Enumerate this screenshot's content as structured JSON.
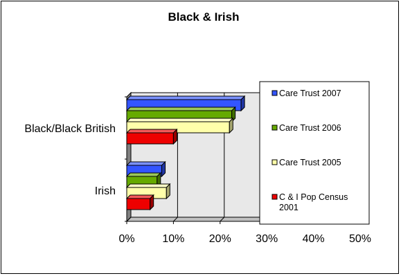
{
  "chart_data": {
    "type": "bar",
    "orientation": "horizontal",
    "title": "Black & Irish",
    "categories": [
      "Black/Black British",
      "Irish"
    ],
    "series": [
      {
        "name": "Care Trust 2007",
        "color": "#3355ff",
        "values": [
          0.245,
          0.075
        ]
      },
      {
        "name": "Care Trust 2006",
        "color": "#66aa00",
        "values": [
          0.225,
          0.065
        ]
      },
      {
        "name": "Care Trust 2005",
        "color": "#ffffaa",
        "values": [
          0.22,
          0.085
        ]
      },
      {
        "name": "C & I Pop Census 2001",
        "color": "#ee0000",
        "values": [
          0.1,
          0.05
        ]
      }
    ],
    "xlim": [
      0,
      0.5
    ],
    "x_ticks": [
      "0%",
      "10%",
      "20%",
      "30%",
      "40%",
      "50%"
    ],
    "xlabel": "",
    "ylabel": "",
    "grid": true,
    "legend_position": "right",
    "three_d": true
  }
}
